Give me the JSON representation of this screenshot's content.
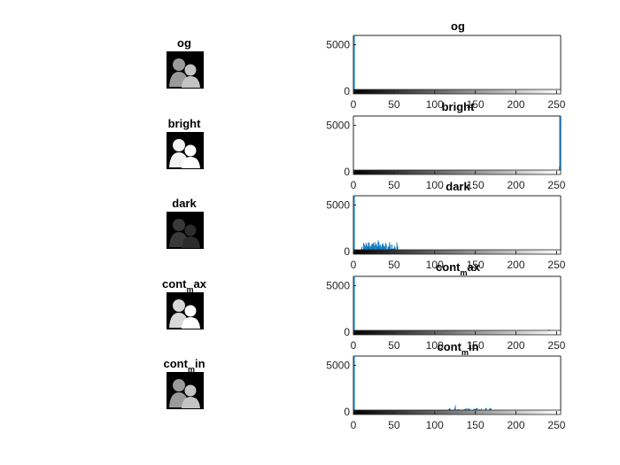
{
  "chart_data": [
    {
      "type": "bar",
      "title": "og",
      "image_label": "og",
      "image_mode": "normal",
      "xlim": [
        0,
        255
      ],
      "ylim": [
        0,
        6000
      ],
      "xticks": [
        0,
        50,
        100,
        150,
        200,
        250
      ],
      "yticks": [
        0,
        5000
      ],
      "spikes": [
        {
          "x": 0,
          "y": 6200
        }
      ],
      "bands": [
        {
          "from": 95,
          "to": 180,
          "level": 80
        }
      ],
      "extra": [
        {
          "x": 213,
          "y": 180
        }
      ]
    },
    {
      "type": "bar",
      "title": "bright",
      "image_label": "bright",
      "image_mode": "bright",
      "xlim": [
        0,
        255
      ],
      "ylim": [
        0,
        6000
      ],
      "xticks": [
        0,
        50,
        100,
        150,
        200,
        250
      ],
      "yticks": [
        0,
        5000
      ],
      "spikes": [
        {
          "x": 255,
          "y": 6000
        }
      ],
      "bands": [
        {
          "from": 180,
          "to": 254,
          "level": 120
        }
      ],
      "extra": [
        {
          "x": 253,
          "y": 600
        }
      ]
    },
    {
      "type": "bar",
      "title": "dark",
      "image_label": "dark",
      "image_mode": "dark",
      "xlim": [
        0,
        255
      ],
      "ylim": [
        0,
        6000
      ],
      "xticks": [
        0,
        50,
        100,
        150,
        200,
        250
      ],
      "yticks": [
        0,
        5000
      ],
      "spikes": [
        {
          "x": 0,
          "y": 6200
        }
      ],
      "bands": [
        {
          "from": 10,
          "to": 55,
          "level": 600
        }
      ],
      "extra": [
        {
          "x": 30,
          "y": 1200
        }
      ]
    },
    {
      "type": "bar",
      "title": "cont_max",
      "title_main": "cont",
      "title_sub": "m",
      "title_rest": "ax",
      "image_label": "cont_max",
      "image_mode": "contrast",
      "xlim": [
        0,
        255
      ],
      "ylim": [
        0,
        6000
      ],
      "xticks": [
        0,
        50,
        100,
        150,
        200,
        250
      ],
      "yticks": [
        0,
        5000
      ],
      "spikes": [
        {
          "x": 0,
          "y": 6200
        }
      ],
      "bands": [
        {
          "from": 2,
          "to": 250,
          "level": 60
        }
      ],
      "extra": [
        {
          "x": 240,
          "y": 300
        }
      ]
    },
    {
      "type": "bar",
      "title": "cont_min",
      "title_main": "cont",
      "title_sub": "m",
      "title_rest": "in",
      "image_label": "cont_min",
      "image_mode": "normal",
      "xlim": [
        0,
        255
      ],
      "ylim": [
        0,
        6000
      ],
      "xticks": [
        0,
        50,
        100,
        150,
        200,
        250
      ],
      "yticks": [
        0,
        5000
      ],
      "spikes": [
        {
          "x": 0,
          "y": 6200
        }
      ],
      "bands": [
        {
          "from": 115,
          "to": 170,
          "level": 250
        }
      ],
      "extra": [
        {
          "x": 125,
          "y": 700
        }
      ]
    }
  ],
  "colors": {
    "bar": "#0072bd",
    "axis": "#262626"
  }
}
